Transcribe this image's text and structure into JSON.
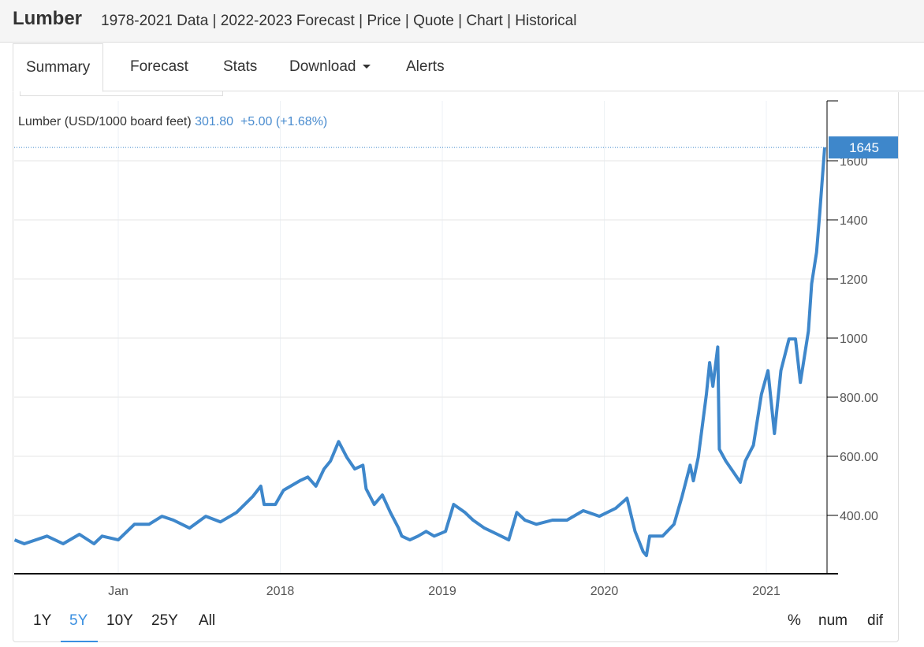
{
  "header": {
    "title": "Lumber",
    "subtitle": "1978-2021 Data | 2022-2023 Forecast | Price | Quote | Chart | Historical"
  },
  "tabs": [
    {
      "label": "Summary"
    },
    {
      "label": "Forecast"
    },
    {
      "label": "Stats"
    },
    {
      "label": "Download"
    },
    {
      "label": "Alerts"
    }
  ],
  "legend": {
    "name": "Lumber (USD/1000 board feet)",
    "price": "301.80",
    "change": "+5.00 (+1.68%)"
  },
  "ranges": [
    "1Y",
    "5Y",
    "10Y",
    "25Y",
    "All"
  ],
  "selected_range": "5Y",
  "modes": [
    "%",
    "num",
    "dif"
  ],
  "colors": {
    "line": "#3e87cb",
    "accent": "#3a8fe0"
  },
  "chart_data": {
    "type": "line",
    "title": "Lumber (USD/1000 board feet)",
    "xlabel": "",
    "ylabel": "",
    "xlim": [
      2016.36,
      2021.42
    ],
    "ylim": [
      203,
      1800
    ],
    "x_ticks": [
      {
        "x": 2017.0,
        "label": "Jan"
      },
      {
        "x": 2018.0,
        "label": "2018"
      },
      {
        "x": 2019.0,
        "label": "2019"
      },
      {
        "x": 2020.0,
        "label": "2020"
      },
      {
        "x": 2021.0,
        "label": "2021"
      }
    ],
    "y_ticks": [
      {
        "y": 400,
        "label": "400.00"
      },
      {
        "y": 600,
        "label": "600.00"
      },
      {
        "y": 800,
        "label": "800.00"
      },
      {
        "y": 1000,
        "label": "1000"
      },
      {
        "y": 1200,
        "label": "1200"
      },
      {
        "y": 1400,
        "label": "1400"
      },
      {
        "y": 1600,
        "label": "1600"
      }
    ],
    "last_value_label": "1645",
    "last_value": 1645,
    "grid": true,
    "series": [
      {
        "name": "Lumber",
        "x": [
          2016.36,
          2016.42,
          2016.56,
          2016.66,
          2016.76,
          2016.85,
          2016.9,
          2017.0,
          2017.1,
          2017.19,
          2017.27,
          2017.34,
          2017.44,
          2017.54,
          2017.63,
          2017.73,
          2017.83,
          2017.88,
          2017.9,
          2017.97,
          2018.02,
          2018.12,
          2018.17,
          2018.22,
          2018.27,
          2018.31,
          2018.36,
          2018.41,
          2018.46,
          2018.51,
          2018.53,
          2018.58,
          2018.63,
          2018.68,
          2018.73,
          2018.75,
          2018.8,
          2018.85,
          2018.9,
          2018.95,
          2019.02,
          2019.07,
          2019.14,
          2019.19,
          2019.26,
          2019.34,
          2019.41,
          2019.46,
          2019.51,
          2019.58,
          2019.68,
          2019.77,
          2019.87,
          2019.97,
          2020.07,
          2020.14,
          2020.19,
          2020.24,
          2020.26,
          2020.28,
          2020.36,
          2020.43,
          2020.48,
          2020.53,
          2020.55,
          2020.58,
          2020.63,
          2020.65,
          2020.67,
          2020.7,
          2020.71,
          2020.75,
          2020.8,
          2020.84,
          2020.87,
          2020.92,
          2020.97,
          2021.01,
          2021.05,
          2021.09,
          2021.14,
          2021.18,
          2021.21,
          2021.26,
          2021.28,
          2021.31,
          2021.33,
          2021.36
        ],
        "y": [
          317,
          304,
          330,
          304,
          336,
          304,
          330,
          317,
          370,
          370,
          397,
          384,
          357,
          397,
          378,
          410,
          464,
          499,
          437,
          437,
          485,
          517,
          530,
          499,
          557,
          584,
          650,
          597,
          557,
          570,
          490,
          437,
          469,
          410,
          357,
          330,
          317,
          330,
          346,
          330,
          346,
          437,
          410,
          384,
          357,
          336,
          317,
          410,
          384,
          370,
          384,
          384,
          416,
          397,
          424,
          458,
          346,
          277,
          264,
          330,
          330,
          370,
          464,
          570,
          517,
          597,
          810,
          917,
          837,
          970,
          624,
          584,
          544,
          512,
          584,
          637,
          810,
          890,
          677,
          890,
          997,
          997,
          850,
          1024,
          1184,
          1290,
          1424,
          1645
        ]
      }
    ]
  }
}
